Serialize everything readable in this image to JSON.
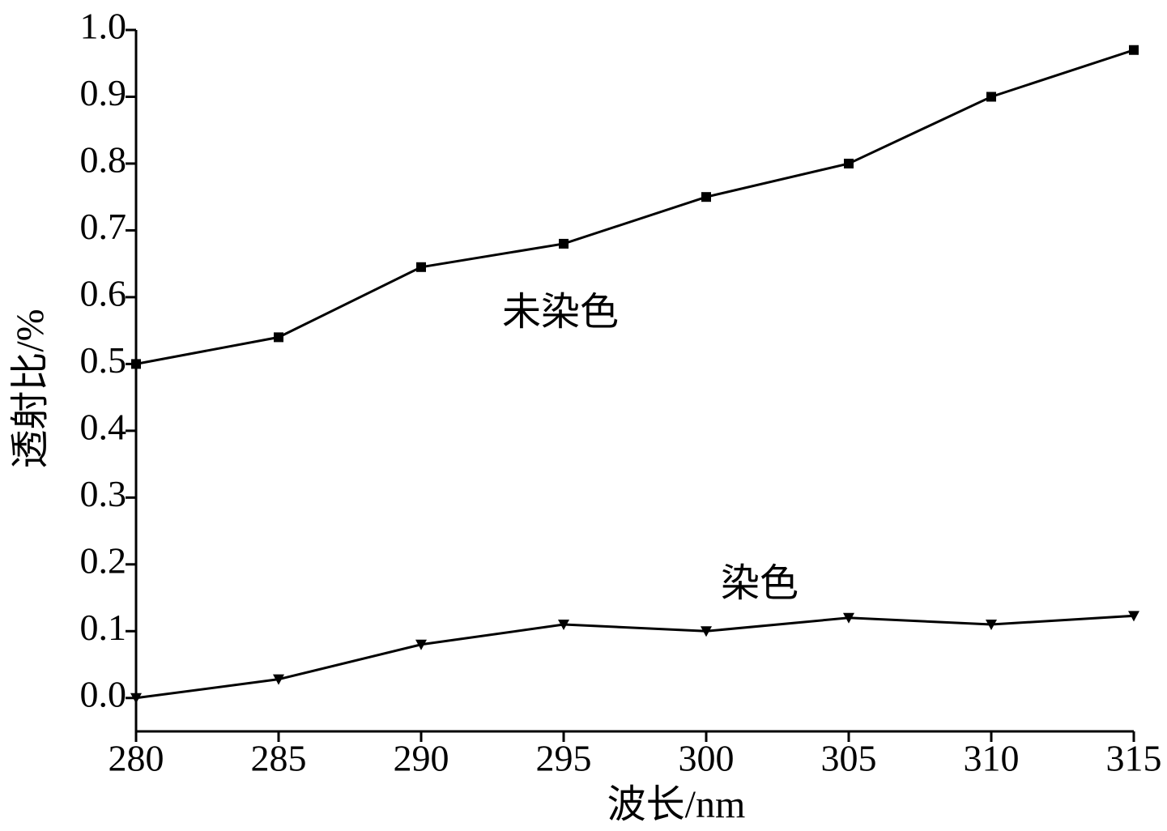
{
  "chart_data": {
    "type": "line",
    "x_label": "波长/nm",
    "y_label": "透射比/%",
    "x": [
      280,
      285,
      290,
      295,
      300,
      305,
      310,
      315
    ],
    "series": [
      {
        "name": "未染色",
        "color": "#000000",
        "marker": "square",
        "values": [
          0.5,
          0.54,
          0.645,
          0.68,
          0.75,
          0.8,
          0.9,
          0.97
        ]
      },
      {
        "name": "染色",
        "color": "#000000",
        "marker": "triangle-down",
        "values": [
          0.0,
          0.028,
          0.08,
          0.11,
          0.1,
          0.12,
          0.11,
          0.123
        ]
      }
    ],
    "xlim": [
      280,
      315
    ],
    "xticks": [
      280,
      285,
      290,
      295,
      300,
      305,
      310,
      315
    ],
    "ylim": [
      -0.05,
      1.0
    ],
    "yticks": [
      {
        "value": 0,
        "label": "0.0"
      },
      0.1,
      0.2,
      0.3,
      0.4,
      0.5,
      0.6,
      0.7,
      0.8,
      0.9,
      {
        "value": 1,
        "label": "1.0"
      }
    ],
    "grid": false
  }
}
